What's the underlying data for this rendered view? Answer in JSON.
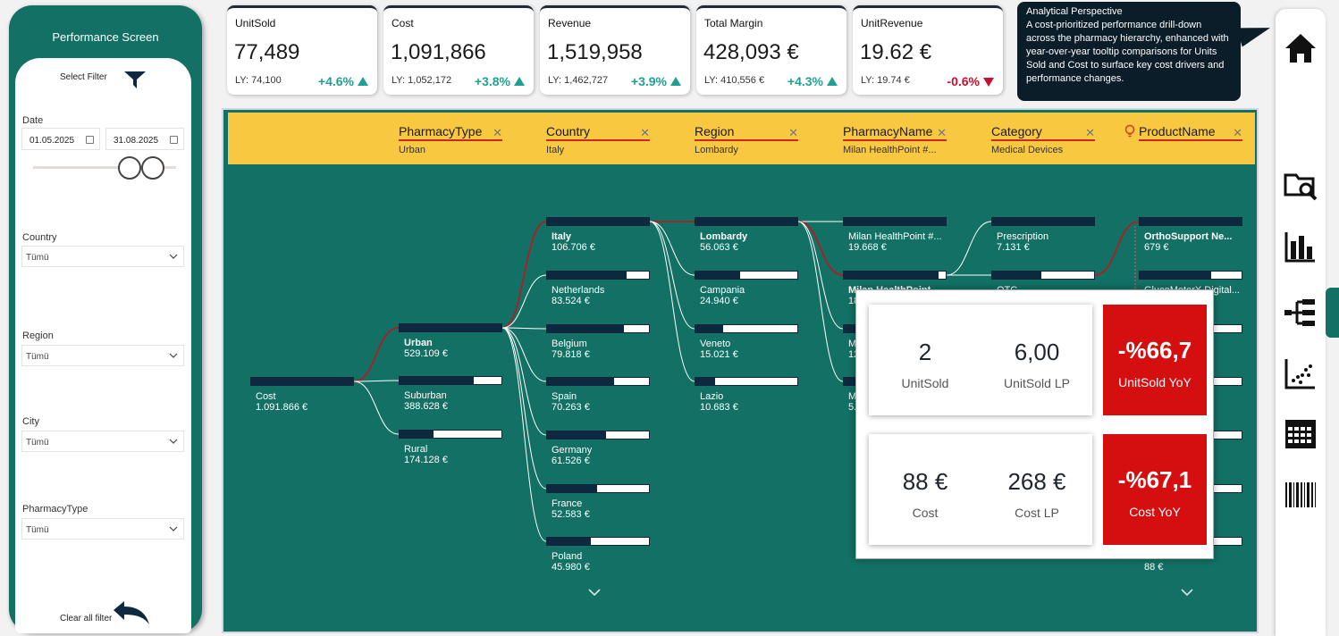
{
  "left_panel": {
    "title": "Performance Screen",
    "select_filter_label": "Select Filter",
    "date_label": "Date",
    "date_start": "01.05.2025",
    "date_end": "31.08.2025",
    "filters": [
      {
        "label": "Country",
        "value": "Tümü"
      },
      {
        "label": "Region",
        "value": "Tümü"
      },
      {
        "label": "City",
        "value": "Tümü"
      },
      {
        "label": "PharmacyType",
        "value": "Tümü"
      }
    ],
    "clear_filter_label": "Clear all filter"
  },
  "kpis": [
    {
      "title": "UnitSold",
      "value": "77,489",
      "ly": "LY: 74,100",
      "delta": "+4.6%",
      "dir": "up"
    },
    {
      "title": "Cost",
      "value": "1,091,866",
      "ly": "LY: 1,052,172",
      "delta": "+3.8%",
      "dir": "up"
    },
    {
      "title": "Revenue",
      "value": "1,519,958",
      "ly": "LY: 1,462,727",
      "delta": "+3.9%",
      "dir": "up"
    },
    {
      "title": "Total Margin",
      "value": "428,093 €",
      "ly": "LY: 410,556 €",
      "delta": "+4.3%",
      "dir": "up"
    },
    {
      "title": "UnitRevenue",
      "value": "19.62 €",
      "ly": "LY: 19.74 €",
      "delta": "-0.6%",
      "dir": "down"
    }
  ],
  "analytic": {
    "title": "Analytical Perspective",
    "text": "A cost-prioritized performance drill-down across the pharmacy hierarchy, enhanced with year-over-year tooltip comparisons for Units Sold and Cost to surface key cost drivers and performance changes."
  },
  "levels": [
    {
      "header": "PharmacyType",
      "value": "Urban"
    },
    {
      "header": "Country",
      "value": "Italy"
    },
    {
      "header": "Region",
      "value": "Lombardy"
    },
    {
      "header": "PharmacyName",
      "value": "Milan HealthPoint #..."
    },
    {
      "header": "Category",
      "value": "Medical Devices"
    },
    {
      "header": "ProductName",
      "value": ""
    }
  ],
  "tree": {
    "root": {
      "label": "Cost",
      "value": "1.091.866 €",
      "fill": 1.0
    },
    "columns": [
      [
        {
          "label": "Urban",
          "value": "529.109 €",
          "fill": 1.0,
          "selected": true
        },
        {
          "label": "Suburban",
          "value": "388.628 €",
          "fill": 0.73
        },
        {
          "label": "Rural",
          "value": "174.128 €",
          "fill": 0.33
        }
      ],
      [
        {
          "label": "Italy",
          "value": "106.706 €",
          "fill": 1.0,
          "selected": true
        },
        {
          "label": "Netherlands",
          "value": "83.524 €",
          "fill": 0.78
        },
        {
          "label": "Belgium",
          "value": "79.818 €",
          "fill": 0.75
        },
        {
          "label": "Spain",
          "value": "70.263 €",
          "fill": 0.66
        },
        {
          "label": "Germany",
          "value": "61.526 €",
          "fill": 0.58
        },
        {
          "label": "France",
          "value": "52.583 €",
          "fill": 0.49
        },
        {
          "label": "Poland",
          "value": "45.980 €",
          "fill": 0.43
        }
      ],
      [
        {
          "label": "Lombardy",
          "value": "56.063 €",
          "fill": 1.0,
          "selected": true
        },
        {
          "label": "Campania",
          "value": "24.940 €",
          "fill": 0.44
        },
        {
          "label": "Veneto",
          "value": "15.021 €",
          "fill": 0.27
        },
        {
          "label": "Lazio",
          "value": "10.683 €",
          "fill": 0.19
        }
      ],
      [
        {
          "label": "Milan HealthPoint #...",
          "value": "19.668 €",
          "fill": 1.0
        },
        {
          "label": "Milan HealthPoint ...",
          "value": "18",
          "fill": 0.93,
          "selected": true
        },
        {
          "label": "M",
          "value": "12",
          "fill": 0.6
        },
        {
          "label": "M",
          "value": "5.4",
          "fill": 0.28
        }
      ],
      [
        {
          "label": "Prescription",
          "value": "7.131 €",
          "fill": 1.0
        },
        {
          "label": "OTC",
          "value": "",
          "fill": 0.48
        }
      ],
      [
        {
          "label": "OrthoSupport Ne...",
          "value": "679 €",
          "fill": 1.0,
          "selected": true
        },
        {
          "label": "GlucoMeterX Digital...",
          "value": "",
          "fill": 0.7
        },
        {
          "label": "st Ai...",
          "value": "",
          "fill": 0.6
        },
        {
          "label": "nee ...",
          "value": "",
          "fill": 0.5
        },
        {
          "label": "nee ...",
          "value": "",
          "fill": 0.4
        },
        {
          "label": "Bloo...",
          "value": "",
          "fill": 0.3
        },
        {
          "label": "Aid ...",
          "value": "88 €",
          "fill": 0.15
        }
      ]
    ]
  },
  "tooltip": {
    "row1": {
      "a_val": "2",
      "a_lbl": "UnitSold",
      "b_val": "6,00",
      "b_lbl": "UnitSold LP",
      "yoy_val": "-%66,7",
      "yoy_lbl": "UnitSold YoY"
    },
    "row2": {
      "a_val": "88 €",
      "a_lbl": "Cost",
      "b_val": "268 €",
      "b_lbl": "Cost LP",
      "yoy_val": "-%67,1",
      "yoy_lbl": "Cost YoY"
    }
  },
  "colors": {
    "teal": "#127064",
    "navy": "#0e2840",
    "yellow": "#f8c840",
    "red": "#d50f0f",
    "green": "#20a090"
  },
  "nav_icons": [
    "home-icon",
    "folder-search-icon",
    "bar-chart-icon",
    "hierarchy-icon",
    "scatter-icon",
    "calendar-table-icon",
    "barcode-icon"
  ]
}
